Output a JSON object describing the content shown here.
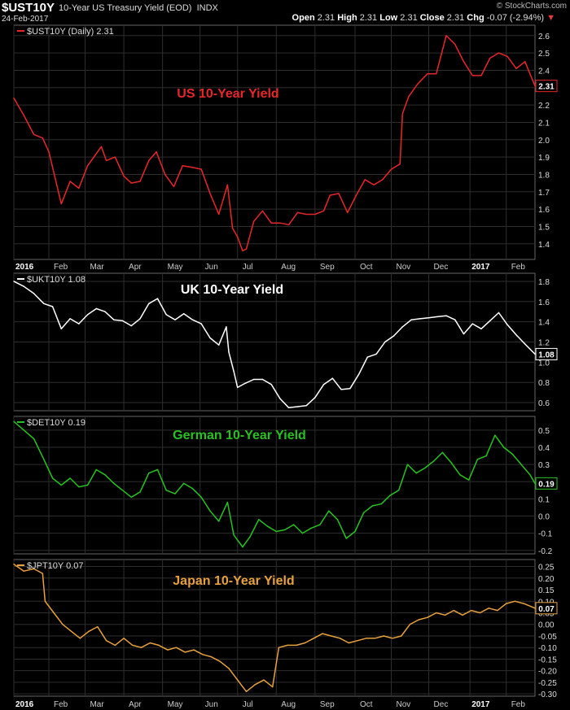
{
  "header": {
    "symbol": "$UST10Y",
    "description": "10-Year US Treasury Yield (EOD)",
    "exchange": "INDX",
    "date": "24-Feb-2017",
    "open_label": "Open",
    "open": "2.31",
    "high_label": "High",
    "high": "2.31",
    "low_label": "Low",
    "low": "2.31",
    "close_label": "Close",
    "close": "2.31",
    "chg_label": "Chg",
    "chg": "-0.07 (-2.94%)",
    "chg_arrow": "▼",
    "brand": "© StockCharts.com"
  },
  "colors": {
    "background": "#000000",
    "grid": "#2e2e2e",
    "us": "#e8262a",
    "uk": "#ffffff",
    "de": "#27c21f",
    "jp": "#e8a13c"
  },
  "chart_data": [
    {
      "type": "line",
      "legend": "$UST10Y (Daily) 2.31",
      "annotation": "US 10-Year Yield",
      "last_label": "2.31",
      "ylim": [
        1.31,
        2.66
      ],
      "yticks": [
        1.4,
        1.5,
        1.6,
        1.7,
        1.8,
        1.9,
        2.0,
        2.1,
        2.2,
        2.3,
        2.4,
        2.5,
        2.6
      ],
      "ytick_labels": [
        "1.4",
        "1.5",
        "1.6",
        "1.7",
        "1.8",
        "1.9",
        "2.0",
        "2.1",
        "2.2",
        "2.4",
        "2.5",
        "2.6"
      ],
      "xticks": [
        "2016",
        "Feb",
        "Mar",
        "Apr",
        "May",
        "Jun",
        "Jul",
        "Aug",
        "Sep",
        "Oct",
        "Nov",
        "Dec",
        "2017",
        "Feb"
      ],
      "grid": true,
      "x": [
        "2016-01-04",
        "2016-01-12",
        "2016-01-20",
        "2016-01-27",
        "2016-02-01",
        "2016-02-11",
        "2016-02-18",
        "2016-02-25",
        "2016-03-03",
        "2016-03-09",
        "2016-03-14",
        "2016-03-18",
        "2016-03-25",
        "2016-04-01",
        "2016-04-07",
        "2016-04-14",
        "2016-04-21",
        "2016-04-27",
        "2016-05-04",
        "2016-05-11",
        "2016-05-18",
        "2016-05-26",
        "2016-06-02",
        "2016-06-09",
        "2016-06-16",
        "2016-06-23",
        "2016-06-27",
        "2016-07-01",
        "2016-07-05",
        "2016-07-08",
        "2016-07-14",
        "2016-07-21",
        "2016-07-28",
        "2016-08-04",
        "2016-08-11",
        "2016-08-18",
        "2016-08-25",
        "2016-09-01",
        "2016-09-08",
        "2016-09-13",
        "2016-09-20",
        "2016-09-27",
        "2016-10-04",
        "2016-10-11",
        "2016-10-18",
        "2016-10-25",
        "2016-11-01",
        "2016-11-08",
        "2016-11-10",
        "2016-11-15",
        "2016-11-22",
        "2016-11-30",
        "2016-12-07",
        "2016-12-15",
        "2016-12-22",
        "2016-12-29",
        "2017-01-05",
        "2017-01-12",
        "2017-01-19",
        "2017-01-26",
        "2017-02-02",
        "2017-02-09",
        "2017-02-16",
        "2017-02-24"
      ],
      "values": [
        2.24,
        2.14,
        2.03,
        2.01,
        1.93,
        1.63,
        1.76,
        1.72,
        1.85,
        1.91,
        1.96,
        1.88,
        1.9,
        1.79,
        1.75,
        1.76,
        1.88,
        1.93,
        1.8,
        1.73,
        1.85,
        1.84,
        1.83,
        1.69,
        1.57,
        1.74,
        1.49,
        1.44,
        1.36,
        1.37,
        1.53,
        1.59,
        1.52,
        1.52,
        1.51,
        1.58,
        1.57,
        1.57,
        1.59,
        1.68,
        1.69,
        1.58,
        1.68,
        1.77,
        1.74,
        1.77,
        1.83,
        1.86,
        2.15,
        2.25,
        2.32,
        2.38,
        2.38,
        2.6,
        2.55,
        2.45,
        2.37,
        2.37,
        2.47,
        2.5,
        2.48,
        2.41,
        2.45,
        2.31
      ]
    },
    {
      "type": "line",
      "legend": "$UKT10Y 1.08",
      "annotation": "UK 10-Year Yield",
      "last_label": "1.08",
      "ylim": [
        0.52,
        1.88
      ],
      "yticks": [
        0.6,
        0.8,
        1.0,
        1.2,
        1.4,
        1.6,
        1.8
      ],
      "ytick_labels": [
        "0.6",
        "0.8",
        "1.0",
        "1.2",
        "1.4",
        "1.6",
        "1.8"
      ],
      "grid": true,
      "x": [
        "2016-01-04",
        "2016-01-12",
        "2016-01-20",
        "2016-01-28",
        "2016-02-04",
        "2016-02-11",
        "2016-02-18",
        "2016-02-25",
        "2016-03-03",
        "2016-03-10",
        "2016-03-17",
        "2016-03-24",
        "2016-03-31",
        "2016-04-07",
        "2016-04-14",
        "2016-04-21",
        "2016-04-28",
        "2016-05-05",
        "2016-05-12",
        "2016-05-19",
        "2016-05-26",
        "2016-06-02",
        "2016-06-09",
        "2016-06-16",
        "2016-06-22",
        "2016-06-24",
        "2016-06-28",
        "2016-07-01",
        "2016-07-07",
        "2016-07-14",
        "2016-07-21",
        "2016-07-28",
        "2016-08-04",
        "2016-08-11",
        "2016-08-18",
        "2016-08-25",
        "2016-09-01",
        "2016-09-08",
        "2016-09-15",
        "2016-09-22",
        "2016-09-29",
        "2016-10-06",
        "2016-10-13",
        "2016-10-20",
        "2016-10-27",
        "2016-11-03",
        "2016-11-10",
        "2016-11-17",
        "2016-11-24",
        "2016-12-01",
        "2016-12-08",
        "2016-12-15",
        "2016-12-22",
        "2016-12-29",
        "2017-01-05",
        "2017-01-12",
        "2017-01-19",
        "2017-01-26",
        "2017-02-02",
        "2017-02-09",
        "2017-02-16",
        "2017-02-24"
      ],
      "values": [
        1.8,
        1.75,
        1.68,
        1.58,
        1.55,
        1.33,
        1.43,
        1.38,
        1.47,
        1.53,
        1.5,
        1.42,
        1.41,
        1.36,
        1.43,
        1.58,
        1.63,
        1.47,
        1.42,
        1.48,
        1.42,
        1.38,
        1.24,
        1.17,
        1.35,
        1.1,
        0.91,
        0.75,
        0.79,
        0.83,
        0.83,
        0.78,
        0.64,
        0.55,
        0.56,
        0.57,
        0.65,
        0.78,
        0.84,
        0.73,
        0.74,
        0.88,
        1.05,
        1.08,
        1.2,
        1.26,
        1.35,
        1.42,
        1.43,
        1.44,
        1.45,
        1.46,
        1.42,
        1.28,
        1.38,
        1.33,
        1.41,
        1.49,
        1.37,
        1.27,
        1.18,
        1.08
      ]
    },
    {
      "type": "line",
      "legend": "$DET10Y 0.19",
      "annotation": "German 10-Year Yield",
      "last_label": "0.19",
      "ylim": [
        -0.22,
        0.58
      ],
      "yticks": [
        -0.2,
        -0.1,
        0.0,
        0.1,
        0.2,
        0.3,
        0.4,
        0.5
      ],
      "ytick_labels": [
        "-0.2",
        "-0.1",
        "0.0",
        "0.1",
        "0.2",
        "0.3",
        "0.4",
        "0.5"
      ],
      "grid": true,
      "x": [
        "2016-01-04",
        "2016-01-12",
        "2016-01-20",
        "2016-01-28",
        "2016-02-04",
        "2016-02-11",
        "2016-02-18",
        "2016-02-25",
        "2016-03-03",
        "2016-03-10",
        "2016-03-17",
        "2016-03-24",
        "2016-03-31",
        "2016-04-07",
        "2016-04-14",
        "2016-04-21",
        "2016-04-28",
        "2016-05-05",
        "2016-05-12",
        "2016-05-19",
        "2016-05-26",
        "2016-06-02",
        "2016-06-09",
        "2016-06-16",
        "2016-06-23",
        "2016-06-28",
        "2016-07-05",
        "2016-07-11",
        "2016-07-18",
        "2016-07-25",
        "2016-08-01",
        "2016-08-08",
        "2016-08-15",
        "2016-08-22",
        "2016-08-29",
        "2016-09-05",
        "2016-09-12",
        "2016-09-19",
        "2016-09-26",
        "2016-10-03",
        "2016-10-10",
        "2016-10-17",
        "2016-10-24",
        "2016-10-31",
        "2016-11-07",
        "2016-11-14",
        "2016-11-21",
        "2016-11-28",
        "2016-12-05",
        "2016-12-12",
        "2016-12-19",
        "2016-12-26",
        "2017-01-02",
        "2017-01-09",
        "2017-01-16",
        "2017-01-23",
        "2017-01-30",
        "2017-02-06",
        "2017-02-13",
        "2017-02-20",
        "2017-02-24"
      ],
      "values": [
        0.55,
        0.5,
        0.45,
        0.33,
        0.22,
        0.18,
        0.22,
        0.17,
        0.18,
        0.27,
        0.24,
        0.19,
        0.15,
        0.11,
        0.14,
        0.25,
        0.27,
        0.15,
        0.13,
        0.19,
        0.16,
        0.11,
        0.03,
        -0.03,
        0.08,
        -0.11,
        -0.18,
        -0.12,
        -0.02,
        -0.06,
        -0.09,
        -0.08,
        -0.05,
        -0.1,
        -0.07,
        -0.05,
        0.03,
        -0.02,
        -0.13,
        -0.09,
        0.02,
        0.06,
        0.07,
        0.12,
        0.15,
        0.3,
        0.25,
        0.28,
        0.32,
        0.37,
        0.31,
        0.24,
        0.21,
        0.33,
        0.35,
        0.47,
        0.4,
        0.36,
        0.3,
        0.24,
        0.19
      ]
    },
    {
      "type": "line",
      "legend": "$JPT10Y 0.07",
      "annotation": "Japan 10-Year Yield",
      "last_label": "0.07",
      "ylim": [
        -0.31,
        0.28
      ],
      "yticks": [
        -0.3,
        -0.25,
        -0.2,
        -0.15,
        -0.1,
        -0.05,
        0.0,
        0.05,
        0.1,
        0.15,
        0.2,
        0.25
      ],
      "ytick_labels": [
        "-0.30",
        "-0.25",
        "-0.20",
        "-0.15",
        "-0.10",
        "-0.05",
        "0.00",
        "0.05",
        "0.10",
        "0.15",
        "0.20",
        "0.25"
      ],
      "xticks": [
        "2016",
        "Feb",
        "Mar",
        "Apr",
        "May",
        "Jun",
        "Jul",
        "Aug",
        "Sep",
        "Oct",
        "Nov",
        "Dec",
        "2017",
        "Feb"
      ],
      "grid": true,
      "x": [
        "2016-01-04",
        "2016-01-12",
        "2016-01-20",
        "2016-01-27",
        "2016-01-29",
        "2016-02-05",
        "2016-02-12",
        "2016-02-19",
        "2016-02-26",
        "2016-03-04",
        "2016-03-11",
        "2016-03-18",
        "2016-03-25",
        "2016-04-01",
        "2016-04-08",
        "2016-04-15",
        "2016-04-22",
        "2016-04-29",
        "2016-05-06",
        "2016-05-13",
        "2016-05-20",
        "2016-05-27",
        "2016-06-03",
        "2016-06-10",
        "2016-06-17",
        "2016-06-24",
        "2016-07-01",
        "2016-07-08",
        "2016-07-15",
        "2016-07-22",
        "2016-07-29",
        "2016-08-03",
        "2016-08-10",
        "2016-08-17",
        "2016-08-24",
        "2016-08-31",
        "2016-09-07",
        "2016-09-14",
        "2016-09-21",
        "2016-09-28",
        "2016-10-05",
        "2016-10-12",
        "2016-10-19",
        "2016-10-26",
        "2016-11-02",
        "2016-11-09",
        "2016-11-16",
        "2016-11-23",
        "2016-11-30",
        "2016-12-07",
        "2016-12-14",
        "2016-12-21",
        "2016-12-28",
        "2017-01-04",
        "2017-01-11",
        "2017-01-18",
        "2017-01-25",
        "2017-02-01",
        "2017-02-08",
        "2017-02-15",
        "2017-02-24"
      ],
      "values": [
        0.26,
        0.23,
        0.24,
        0.22,
        0.1,
        0.05,
        0.0,
        -0.03,
        -0.06,
        -0.03,
        -0.01,
        -0.07,
        -0.09,
        -0.06,
        -0.09,
        -0.1,
        -0.08,
        -0.09,
        -0.11,
        -0.1,
        -0.12,
        -0.11,
        -0.13,
        -0.14,
        -0.16,
        -0.19,
        -0.24,
        -0.29,
        -0.26,
        -0.24,
        -0.27,
        -0.1,
        -0.09,
        -0.09,
        -0.08,
        -0.06,
        -0.04,
        -0.05,
        -0.06,
        -0.08,
        -0.07,
        -0.06,
        -0.06,
        -0.05,
        -0.06,
        -0.05,
        0.0,
        0.02,
        0.03,
        0.05,
        0.04,
        0.06,
        0.04,
        0.06,
        0.05,
        0.07,
        0.06,
        0.09,
        0.1,
        0.09,
        0.07
      ]
    }
  ]
}
